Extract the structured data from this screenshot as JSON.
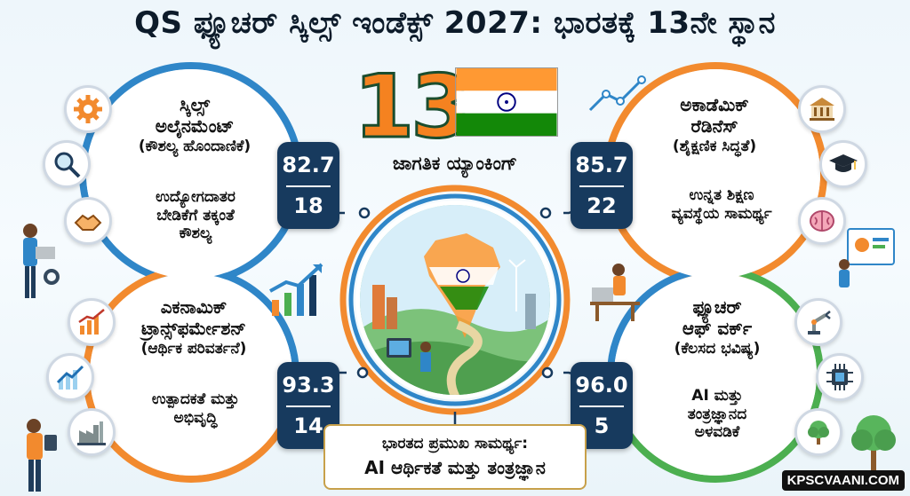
{
  "title": "QS ಫ್ಯೂಚರ್ ಸ್ಕಿಲ್ಸ್ ಇಂಡೆಕ್ಸ್ 2027: ಭಾರತಕ್ಕೆ 13ನೇ ಸ್ಥಾನ",
  "center": {
    "rank": "13",
    "rank_label": "ಜಾಗತಿಕ ಯ್ಯಾಂಕಿಂಗ್"
  },
  "panels": {
    "skills": {
      "title_lines": [
        "ಸ್ಕಿಲ್ಸ್",
        "ಅಲೈನಮೆಂಟ್",
        "(ಕೌಶಲ್ಯ ಹೊಂದಾಣಿಕೆ)"
      ],
      "desc_lines": [
        "ಉದ್ಯೋಗದಾತರ",
        "ಬೇಡಿಕೆಗೆ ತಕ್ಕಂತೆ",
        "ಕೌಶಲ್ಯ"
      ],
      "score": "82.7",
      "rank": "18",
      "color": "#2f86c8",
      "icons": [
        "gear-icon",
        "magnifier-icon",
        "handshake-icon"
      ]
    },
    "academic": {
      "title_lines": [
        "ಅಕಾಡೆಮಿಕ್",
        "ರೆಡಿನೆಸ್",
        "(ಶೈಕ್ಷಣಿಕ ಸಿದ್ಧತೆ)"
      ],
      "desc_lines": [
        "ಉನ್ನತ ಶಿಕ್ಷಣ",
        "ವ್ಯವಸ್ಥೆಯ ಸಾಮರ್ಥ್ಯ"
      ],
      "score": "85.7",
      "rank": "22",
      "color": "#f28a2e",
      "icons": [
        "university-icon",
        "graduation-cap-icon",
        "brain-icon"
      ]
    },
    "economic": {
      "title_lines": [
        "ಎಕನಾಮಿಕ್",
        "ಟ್ರಾನ್ಸ್‌ಫರ್ಮೇಶನ್",
        "(ಆರ್ಥಿಕ ಪರಿವರ್ತನೆ)"
      ],
      "desc_lines": [
        "ಉತ್ಪಾದಕತೆ ಮತ್ತು",
        "ಅಭಿವೃದ್ಧಿ"
      ],
      "score": "93.3",
      "rank": "14",
      "color": "#f28a2e",
      "icons": [
        "bar-chart-icon",
        "trend-arrow-icon",
        "factory-icon"
      ]
    },
    "future": {
      "title_lines": [
        "ಫ್ಯೂಚರ್",
        "ಆಫ್ ವರ್ಕ್",
        "(ಕೆಲಸದ ಭವಿಷ್ಯ)"
      ],
      "desc_lines": [
        "AI ಮತ್ತು",
        "ತಂತ್ರಜ್ಞಾನದ",
        "ಅಳವಡಿಕೆ"
      ],
      "score": "96.0",
      "rank": "5",
      "color": "#4caf50",
      "icons": [
        "robot-arm-icon",
        "chip-icon",
        "tree-icon"
      ]
    }
  },
  "strength": {
    "line1": "ಭಾರತದ ಪ್ರಮುಖ ಸಾಮರ್ಥ್ಯ:",
    "line2": "AI ಆರ್ಥಿಕತೆ ಮತ್ತು ತಂತ್ರಜ್ಞಾನ"
  },
  "watermark": "KPSCVAANI.COM",
  "colors": {
    "navy": "#173a5e",
    "orange": "#f28a2e",
    "blue": "#2f86c8",
    "green": "#4caf50"
  }
}
